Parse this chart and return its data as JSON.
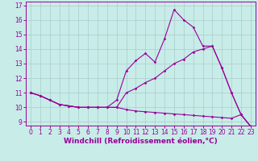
{
  "xlabel": "Windchill (Refroidissement éolien,°C)",
  "background_color": "#c8ece8",
  "grid_color": "#aacccc",
  "line_color": "#990099",
  "xlim": [
    -0.5,
    23.5
  ],
  "ylim": [
    8.75,
    17.25
  ],
  "yticks": [
    9,
    10,
    11,
    12,
    13,
    14,
    15,
    16,
    17
  ],
  "xticks": [
    0,
    1,
    2,
    3,
    4,
    5,
    6,
    7,
    8,
    9,
    10,
    11,
    12,
    13,
    14,
    15,
    16,
    17,
    18,
    19,
    20,
    21,
    22,
    23
  ],
  "line1_x": [
    0,
    1,
    2,
    3,
    4,
    5,
    6,
    7,
    8,
    9,
    10,
    11,
    12,
    13,
    14,
    15,
    16,
    17,
    18,
    19,
    20,
    21,
    22,
    23
  ],
  "line1_y": [
    11.0,
    10.8,
    10.5,
    10.2,
    10.1,
    10.0,
    10.0,
    10.0,
    10.0,
    10.0,
    9.85,
    9.75,
    9.7,
    9.65,
    9.6,
    9.55,
    9.5,
    9.45,
    9.4,
    9.35,
    9.3,
    9.25,
    9.5,
    8.7
  ],
  "line2_x": [
    0,
    1,
    2,
    3,
    4,
    5,
    6,
    7,
    8,
    9,
    10,
    11,
    12,
    13,
    14,
    15,
    16,
    17,
    18,
    19,
    20,
    21,
    22,
    23
  ],
  "line2_y": [
    11.0,
    10.8,
    10.5,
    10.2,
    10.1,
    10.0,
    10.0,
    10.0,
    10.0,
    10.5,
    12.5,
    13.2,
    13.7,
    13.1,
    14.7,
    16.7,
    16.0,
    15.5,
    14.2,
    14.2,
    12.7,
    11.0,
    9.5,
    8.7
  ],
  "line3_x": [
    0,
    1,
    2,
    3,
    4,
    5,
    6,
    7,
    8,
    9,
    10,
    11,
    12,
    13,
    14,
    15,
    16,
    17,
    18,
    19,
    20,
    21,
    22,
    23
  ],
  "line3_y": [
    11.0,
    10.8,
    10.5,
    10.2,
    10.1,
    10.0,
    10.0,
    10.0,
    10.0,
    10.0,
    11.0,
    11.3,
    11.7,
    12.0,
    12.5,
    13.0,
    13.3,
    13.8,
    14.0,
    14.2,
    12.7,
    11.0,
    9.5,
    8.7
  ],
  "marker": "D",
  "markersize": 1.8,
  "linewidth": 0.8,
  "xlabel_fontsize": 6.5,
  "tick_fontsize": 5.5
}
